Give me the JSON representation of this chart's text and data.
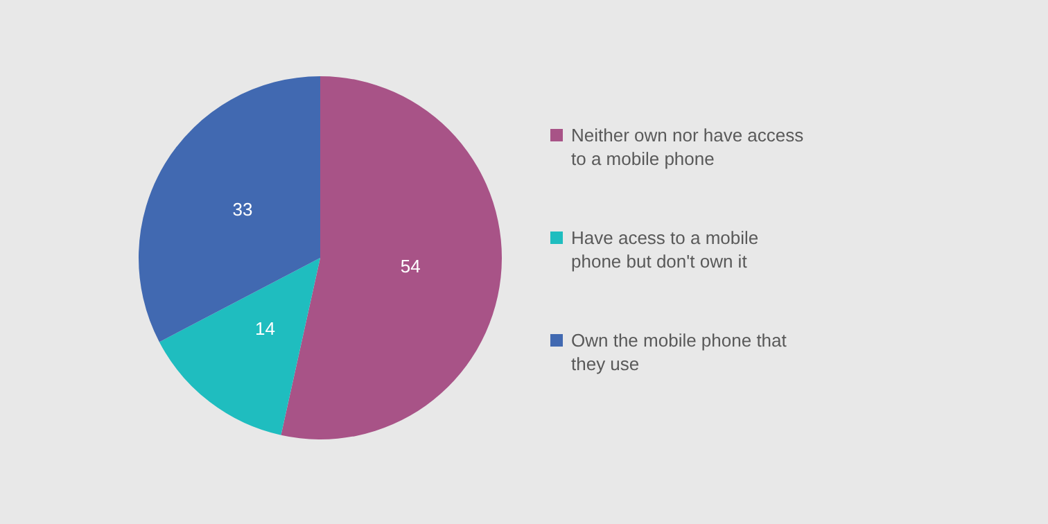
{
  "chart_data": {
    "type": "pie",
    "categories": [
      "Neither own nor have access to a mobile phone",
      "Have acess to a mobile phone but don't own it",
      "Own the mobile phone that they use"
    ],
    "values": [
      54,
      14,
      33
    ],
    "colors": [
      "#a85387",
      "#1fbdbf",
      "#4169b1"
    ],
    "data_labels": true,
    "legend": "right"
  }
}
